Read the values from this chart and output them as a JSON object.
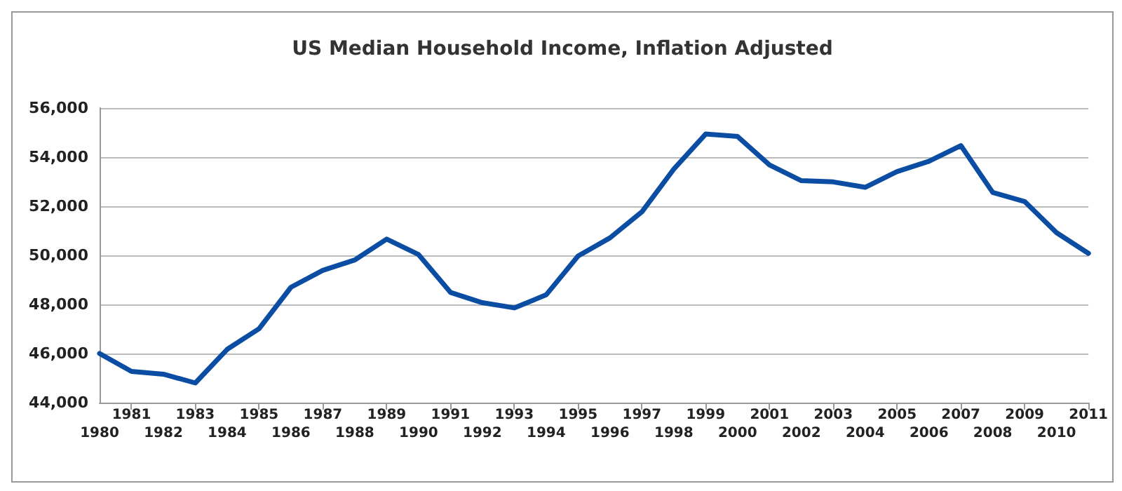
{
  "chart_data": {
    "type": "line",
    "title": "US Median Household Income, Inflation Adjusted",
    "x": [
      1980,
      1981,
      1982,
      1983,
      1984,
      1985,
      1986,
      1987,
      1988,
      1989,
      1990,
      1991,
      1992,
      1993,
      1994,
      1995,
      1996,
      1997,
      1998,
      1999,
      2000,
      2001,
      2002,
      2003,
      2004,
      2005,
      2006,
      2007,
      2008,
      2009,
      2010,
      2011
    ],
    "series": [
      {
        "color": "#0b4da2",
        "values": [
          46000,
          45270,
          45160,
          44800,
          46170,
          47010,
          48700,
          49390,
          49810,
          50660,
          50030,
          48490,
          48070,
          47860,
          48390,
          49970,
          50710,
          51770,
          53510,
          54940,
          54840,
          53680,
          53040,
          52990,
          52770,
          53410,
          53830,
          54470,
          52560,
          52190,
          50920,
          50080
        ]
      }
    ],
    "xlim": [
      1980,
      2011
    ],
    "xticks": [
      1981,
      1983,
      1985,
      1987,
      1989,
      1991,
      1993,
      1995,
      1997,
      1999,
      2001,
      2003,
      2005,
      2007,
      2009,
      2011
    ],
    "x2lim": [
      1980,
      2011
    ],
    "x2ticks": [
      1980,
      1982,
      1984,
      1986,
      1988,
      1990,
      1992,
      1994,
      1996,
      1998,
      2000,
      2002,
      2004,
      2006,
      2008,
      2010
    ],
    "ylim": [
      44000,
      56000
    ],
    "yticks": [
      {
        "value": 44000,
        "label": "44,000"
      },
      {
        "value": 46000,
        "label": "46,000"
      },
      {
        "value": 48000,
        "label": "48,000"
      },
      {
        "value": 50000,
        "label": "50,000"
      },
      {
        "value": 52000,
        "label": "52,000"
      },
      {
        "value": 54000,
        "label": "54,000"
      },
      {
        "value": 56000,
        "label": "56,000"
      }
    ],
    "grid": "y",
    "marker": "none",
    "line_style": "solid"
  }
}
